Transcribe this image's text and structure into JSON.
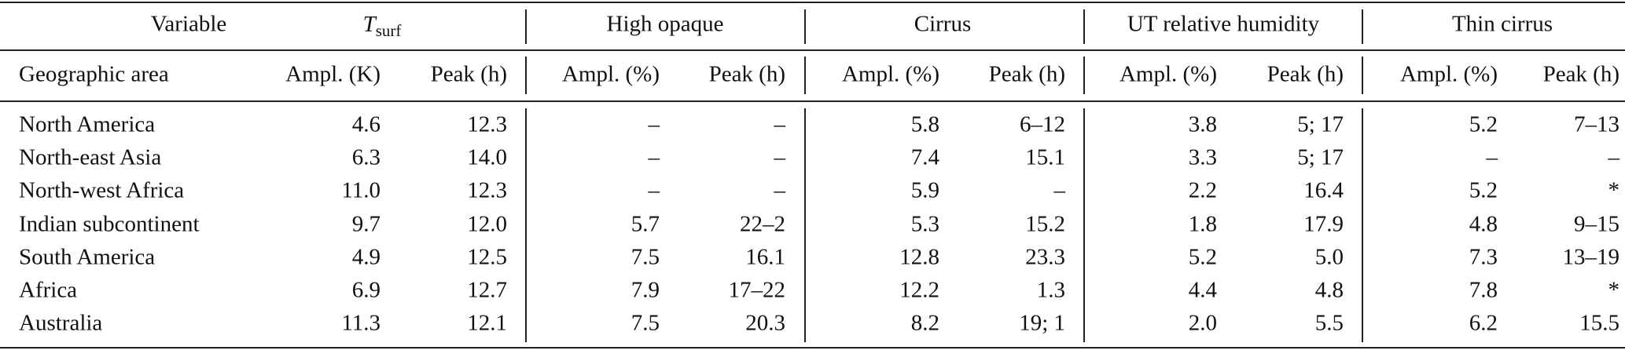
{
  "table": {
    "header_row_1": [
      "Variable",
      {
        "symbol": "T",
        "subscript": "surf"
      },
      "High opaque",
      "Cirrus",
      "UT relative humidity",
      "Thin cirrus"
    ],
    "header_row_2": [
      "Geographic area",
      "Ampl. (K)",
      "Peak (h)",
      "Ampl. (%)",
      "Peak (h)",
      "Ampl. (%)",
      "Peak (h)",
      "Ampl. (%)",
      "Peak (h)",
      "Ampl. (%)",
      "Peak (h)"
    ],
    "rows": [
      [
        "North America",
        "4.6",
        "12.3",
        "–",
        "–",
        "5.8",
        "6–12",
        "3.8",
        "5; 17",
        "5.2",
        "7–13"
      ],
      [
        "North-east Asia",
        "6.3",
        "14.0",
        "–",
        "–",
        "7.4",
        "15.1",
        "3.3",
        "5; 17",
        "–",
        "–"
      ],
      [
        "North-west Africa",
        "11.0",
        "12.3",
        "–",
        "–",
        "5.9",
        "–",
        "2.2",
        "16.4",
        "5.2",
        "*"
      ],
      [
        "Indian subcontinent",
        "9.7",
        "12.0",
        "5.7",
        "22–2",
        "5.3",
        "15.2",
        "1.8",
        "17.9",
        "4.8",
        "9–15"
      ],
      [
        "South America",
        "4.9",
        "12.5",
        "7.5",
        "16.1",
        "12.8",
        "23.3",
        "5.2",
        "5.0",
        "7.3",
        "13–19"
      ],
      [
        "Africa",
        "6.9",
        "12.7",
        "7.9",
        "17–22",
        "12.2",
        "1.3",
        "4.4",
        "4.8",
        "7.8",
        "*"
      ],
      [
        "Australia",
        "11.3",
        "12.1",
        "7.5",
        "20.3",
        "8.2",
        "19; 1",
        "2.0",
        "5.5",
        "6.2",
        "15.5"
      ]
    ]
  }
}
